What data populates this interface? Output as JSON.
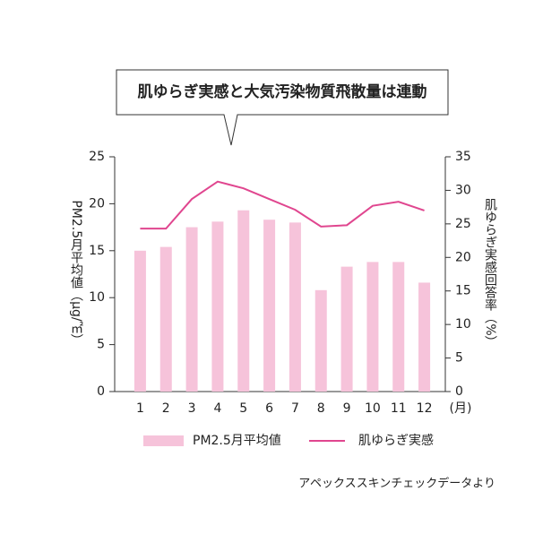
{
  "chart_data": {
    "type": "bar",
    "title": "肌ゆらぎ実感と大気汚染物質飛散量は連動",
    "categories": [
      "1",
      "2",
      "3",
      "4",
      "5",
      "6",
      "7",
      "8",
      "9",
      "10",
      "11",
      "12"
    ],
    "x_unit_label": "(月)",
    "y_label": "PM2.5月平均値（μg/㎡）",
    "y2_label": "肌ゆらぎ実感回答率（%）",
    "series": [
      {
        "name": "PM2.5月平均値",
        "type": "bar",
        "color": "#f6c3da",
        "values": [
          15.0,
          15.4,
          17.5,
          18.1,
          19.3,
          18.3,
          18.0,
          10.8,
          13.3,
          13.8,
          13.8,
          11.6
        ]
      },
      {
        "name": "肌ゆらぎ実感",
        "type": "line",
        "axis": "y2",
        "color": "#e0468f",
        "values": [
          24.3,
          24.3,
          28.7,
          31.3,
          30.3,
          28.7,
          27.1,
          24.6,
          24.8,
          27.7,
          28.3,
          27.0
        ]
      }
    ],
    "ylim": [
      0,
      25
    ],
    "yticks": [
      0,
      5,
      10,
      15,
      20,
      25
    ],
    "y2lim": [
      0,
      35
    ],
    "y2ticks": [
      0,
      5,
      10,
      15,
      20,
      25,
      30,
      35
    ],
    "grid": false,
    "source": "アペックススキンチェックデータより"
  }
}
